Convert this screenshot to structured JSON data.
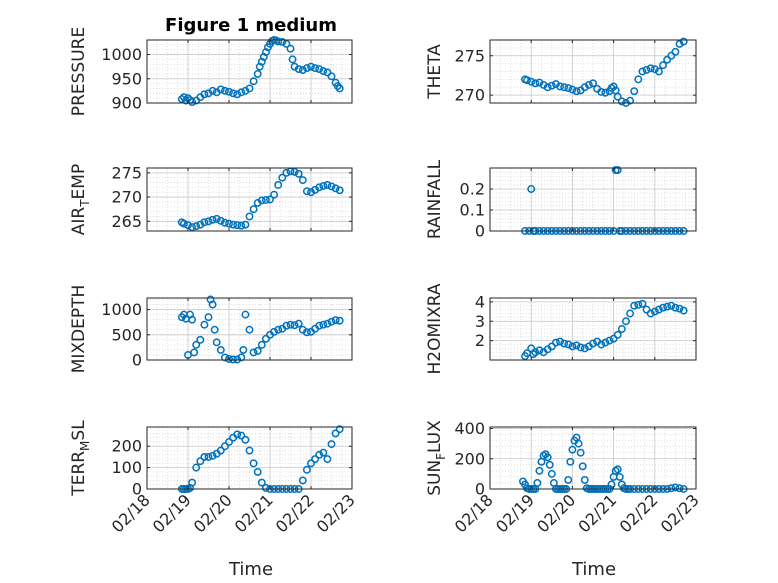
{
  "figure": {
    "title": "Figure 1 medium",
    "xlabel": "Time"
  },
  "colors": {
    "marker": "#0072bd",
    "axis": "#262626",
    "grid": "#d8d8d8"
  },
  "x_ticks": [
    "02/18",
    "02/19",
    "02/20",
    "02/21",
    "02/22",
    "02/23"
  ],
  "chart_data": [
    {
      "type": "scatter",
      "title": "Figure 1 medium",
      "ylabel": "PRESSURE",
      "ylim": [
        900,
        1030
      ],
      "yticks": [
        900,
        950,
        1000
      ],
      "x": [
        18.85,
        18.9,
        18.95,
        19.0,
        19.05,
        19.1,
        19.2,
        19.3,
        19.4,
        19.5,
        19.6,
        19.7,
        19.8,
        19.9,
        20.0,
        20.1,
        20.2,
        20.3,
        20.4,
        20.5,
        20.6,
        20.7,
        20.75,
        20.8,
        20.85,
        20.9,
        20.95,
        21.0,
        21.05,
        21.1,
        21.15,
        21.2,
        21.3,
        21.4,
        21.5,
        21.55,
        21.6,
        21.7,
        21.8,
        21.9,
        22.0,
        22.1,
        22.2,
        22.3,
        22.4,
        22.5,
        22.6,
        22.65,
        22.7
      ],
      "y": [
        908,
        912,
        905,
        910,
        906,
        902,
        905,
        912,
        918,
        920,
        925,
        922,
        928,
        925,
        923,
        920,
        918,
        922,
        925,
        930,
        945,
        960,
        975,
        985,
        995,
        1005,
        1015,
        1022,
        1028,
        1030,
        1029,
        1027,
        1026,
        1022,
        1012,
        990,
        975,
        970,
        968,
        972,
        975,
        972,
        970,
        966,
        963,
        955,
        942,
        935,
        930
      ]
    },
    {
      "type": "scatter",
      "ylabel": "THETA",
      "ylim": [
        269,
        277
      ],
      "yticks": [
        270,
        275
      ],
      "x": [
        18.85,
        18.9,
        19.0,
        19.1,
        19.2,
        19.3,
        19.4,
        19.5,
        19.6,
        19.7,
        19.8,
        19.9,
        20.0,
        20.1,
        20.2,
        20.3,
        20.4,
        20.5,
        20.6,
        20.7,
        20.8,
        20.9,
        20.95,
        21.0,
        21.05,
        21.1,
        21.2,
        21.3,
        21.4,
        21.5,
        21.6,
        21.7,
        21.8,
        21.9,
        22.0,
        22.1,
        22.2,
        22.3,
        22.4,
        22.5,
        22.6,
        22.7
      ],
      "y": [
        272.0,
        271.9,
        271.7,
        271.5,
        271.6,
        271.3,
        271.0,
        271.2,
        271.4,
        271.1,
        271.0,
        270.9,
        270.7,
        270.5,
        270.6,
        271.0,
        271.3,
        271.5,
        270.8,
        270.4,
        270.3,
        270.5,
        270.9,
        271.1,
        270.6,
        269.8,
        269.2,
        269.0,
        269.3,
        270.5,
        272.0,
        273.0,
        273.2,
        273.4,
        273.3,
        273.0,
        273.8,
        274.5,
        275.0,
        275.5,
        276.5,
        276.8
      ]
    },
    {
      "type": "scatter",
      "ylabel": "AIR_TEMP",
      "ylim": [
        263,
        276
      ],
      "yticks": [
        265,
        270,
        275
      ],
      "x": [
        18.85,
        18.9,
        19.0,
        19.1,
        19.2,
        19.3,
        19.4,
        19.5,
        19.6,
        19.7,
        19.8,
        19.9,
        20.0,
        20.1,
        20.2,
        20.3,
        20.4,
        20.5,
        20.6,
        20.7,
        20.8,
        20.9,
        21.0,
        21.1,
        21.2,
        21.3,
        21.4,
        21.5,
        21.6,
        21.7,
        21.8,
        21.9,
        22.0,
        22.1,
        22.2,
        22.3,
        22.4,
        22.5,
        22.6,
        22.7
      ],
      "y": [
        264.8,
        264.5,
        264.2,
        263.8,
        264.0,
        264.3,
        264.8,
        265.0,
        265.3,
        265.5,
        265.1,
        264.7,
        264.5,
        264.3,
        264.2,
        264.1,
        264.3,
        266.0,
        267.5,
        268.8,
        269.3,
        269.4,
        269.5,
        270.5,
        272.5,
        274.0,
        275.0,
        275.3,
        275.2,
        274.8,
        273.5,
        271.2,
        271.0,
        271.5,
        272.0,
        272.3,
        272.5,
        272.2,
        271.8,
        271.4
      ]
    },
    {
      "type": "scatter",
      "ylabel": "RAINFALL",
      "ylim": [
        0,
        0.3
      ],
      "yticks": [
        0,
        0.1,
        0.2
      ],
      "x": [
        18.85,
        18.95,
        19.0,
        19.05,
        19.1,
        19.2,
        19.3,
        19.4,
        19.5,
        19.6,
        19.7,
        19.8,
        19.9,
        20.0,
        20.1,
        20.2,
        20.3,
        20.4,
        20.5,
        20.6,
        20.7,
        20.8,
        20.9,
        21.0,
        21.05,
        21.1,
        21.15,
        21.2,
        21.3,
        21.4,
        21.5,
        21.6,
        21.7,
        21.8,
        21.9,
        22.0,
        22.1,
        22.2,
        22.3,
        22.4,
        22.5,
        22.6,
        22.7
      ],
      "y": [
        0,
        0,
        0.2,
        0,
        0,
        0,
        0,
        0,
        0,
        0,
        0,
        0,
        0,
        0,
        0,
        0,
        0,
        0,
        0,
        0,
        0,
        0,
        0,
        0,
        0.29,
        0.29,
        0,
        0,
        0,
        0,
        0,
        0,
        0,
        0,
        0,
        0,
        0,
        0,
        0,
        0,
        0,
        0,
        0
      ]
    },
    {
      "type": "scatter",
      "ylabel": "MIXDEPTH",
      "ylim": [
        0,
        1230
      ],
      "yticks": [
        0,
        500,
        1000
      ],
      "x": [
        18.85,
        18.9,
        18.95,
        19.0,
        19.05,
        19.1,
        19.15,
        19.2,
        19.3,
        19.4,
        19.5,
        19.55,
        19.6,
        19.65,
        19.7,
        19.8,
        19.9,
        20.0,
        20.1,
        20.2,
        20.3,
        20.35,
        20.4,
        20.5,
        20.6,
        20.7,
        20.8,
        20.9,
        21.0,
        21.1,
        21.2,
        21.3,
        21.4,
        21.5,
        21.6,
        21.7,
        21.8,
        21.9,
        22.0,
        22.1,
        22.2,
        22.3,
        22.4,
        22.5,
        22.6,
        22.7
      ],
      "y": [
        850,
        900,
        820,
        100,
        900,
        800,
        150,
        300,
        400,
        700,
        850,
        1200,
        1100,
        600,
        350,
        200,
        50,
        20,
        10,
        10,
        50,
        200,
        900,
        600,
        150,
        180,
        300,
        420,
        500,
        560,
        600,
        620,
        680,
        700,
        690,
        720,
        600,
        550,
        560,
        620,
        680,
        700,
        720,
        760,
        790,
        780
      ]
    },
    {
      "type": "scatter",
      "ylabel": "H2OMIXRA",
      "ylim": [
        1.0,
        4.2
      ],
      "yticks": [
        2,
        3,
        4
      ],
      "x": [
        18.85,
        18.9,
        19.0,
        19.05,
        19.1,
        19.2,
        19.3,
        19.4,
        19.5,
        19.6,
        19.7,
        19.8,
        19.9,
        20.0,
        20.1,
        20.2,
        20.3,
        20.4,
        20.5,
        20.6,
        20.7,
        20.8,
        20.9,
        21.0,
        21.1,
        21.2,
        21.3,
        21.4,
        21.5,
        21.6,
        21.7,
        21.8,
        21.9,
        22.0,
        22.1,
        22.2,
        22.3,
        22.4,
        22.5,
        22.6,
        22.7
      ],
      "y": [
        1.2,
        1.35,
        1.6,
        1.3,
        1.4,
        1.5,
        1.4,
        1.55,
        1.7,
        1.9,
        1.95,
        1.85,
        1.8,
        1.7,
        1.75,
        1.65,
        1.6,
        1.7,
        1.85,
        1.95,
        1.8,
        1.9,
        2.0,
        2.1,
        2.3,
        2.6,
        3.0,
        3.4,
        3.8,
        3.85,
        3.9,
        3.6,
        3.4,
        3.5,
        3.6,
        3.7,
        3.75,
        3.8,
        3.7,
        3.65,
        3.55
      ]
    },
    {
      "type": "scatter",
      "ylabel": "TERR_MSL",
      "ylim": [
        0,
        290
      ],
      "yticks": [
        0,
        100,
        200
      ],
      "x": [
        18.85,
        18.9,
        18.95,
        19.0,
        19.05,
        19.1,
        19.2,
        19.3,
        19.4,
        19.5,
        19.6,
        19.7,
        19.8,
        19.9,
        20.0,
        20.1,
        20.2,
        20.3,
        20.4,
        20.5,
        20.6,
        20.7,
        20.8,
        20.9,
        21.0,
        21.1,
        21.2,
        21.3,
        21.4,
        21.5,
        21.6,
        21.7,
        21.8,
        21.9,
        22.0,
        22.1,
        22.2,
        22.3,
        22.4,
        22.5,
        22.6,
        22.7
      ],
      "y": [
        0,
        0,
        0,
        0,
        5,
        30,
        100,
        130,
        150,
        150,
        155,
        165,
        180,
        200,
        220,
        240,
        255,
        250,
        230,
        180,
        120,
        80,
        30,
        5,
        0,
        0,
        0,
        0,
        0,
        0,
        0,
        0,
        40,
        90,
        120,
        140,
        160,
        170,
        140,
        210,
        260,
        280
      ]
    },
    {
      "type": "scatter",
      "ylabel": "SUN_FLUX",
      "ylim": [
        0,
        410
      ],
      "yticks": [
        0,
        200,
        400
      ],
      "x": [
        18.8,
        18.85,
        18.9,
        18.95,
        19.0,
        19.05,
        19.1,
        19.15,
        19.2,
        19.25,
        19.3,
        19.35,
        19.4,
        19.45,
        19.5,
        19.55,
        19.6,
        19.65,
        19.7,
        19.75,
        19.8,
        19.85,
        19.9,
        19.95,
        20.0,
        20.05,
        20.1,
        20.15,
        20.2,
        20.25,
        20.3,
        20.35,
        20.4,
        20.45,
        20.5,
        20.55,
        20.6,
        20.65,
        20.7,
        20.75,
        20.8,
        20.85,
        20.9,
        20.95,
        21.0,
        21.05,
        21.1,
        21.15,
        21.2,
        21.25,
        21.3,
        21.35,
        21.4,
        21.5,
        21.6,
        21.7,
        21.8,
        21.9,
        22.0,
        22.1,
        22.2,
        22.3,
        22.4,
        22.5,
        22.6,
        22.7
      ],
      "y": [
        50,
        30,
        5,
        0,
        0,
        0,
        0,
        40,
        120,
        180,
        220,
        230,
        210,
        160,
        100,
        40,
        0,
        0,
        0,
        0,
        0,
        0,
        60,
        180,
        260,
        320,
        340,
        300,
        240,
        150,
        60,
        5,
        0,
        0,
        0,
        0,
        0,
        0,
        0,
        0,
        0,
        0,
        0,
        30,
        80,
        120,
        130,
        80,
        30,
        5,
        0,
        0,
        0,
        0,
        0,
        0,
        0,
        0,
        0,
        0,
        0,
        0,
        5,
        10,
        5,
        0
      ]
    }
  ]
}
